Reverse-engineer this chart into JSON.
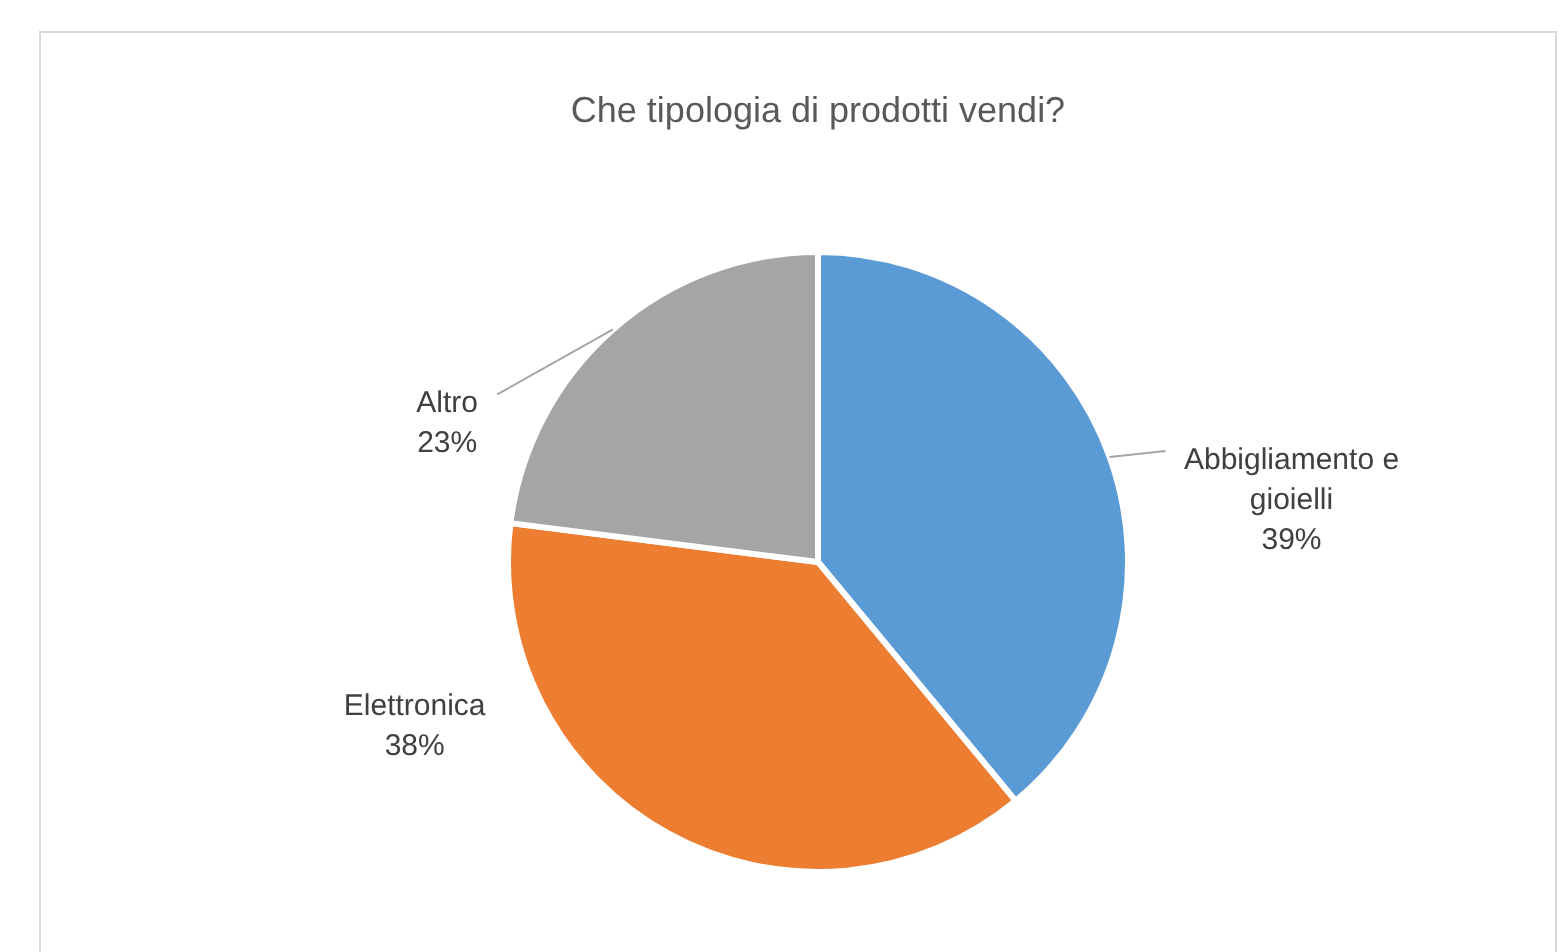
{
  "chart_data": {
    "type": "pie",
    "title": "Che tipologia di prodotti vendi?",
    "categories": [
      "Abbigliamento e gioielli",
      "Elettronica",
      "Altro"
    ],
    "values": [
      39,
      38,
      23
    ],
    "colors": [
      "#5b9bd5",
      "#ed7d31",
      "#a5a5a5"
    ],
    "value_labels": [
      "39%",
      "38%",
      "23%"
    ]
  }
}
